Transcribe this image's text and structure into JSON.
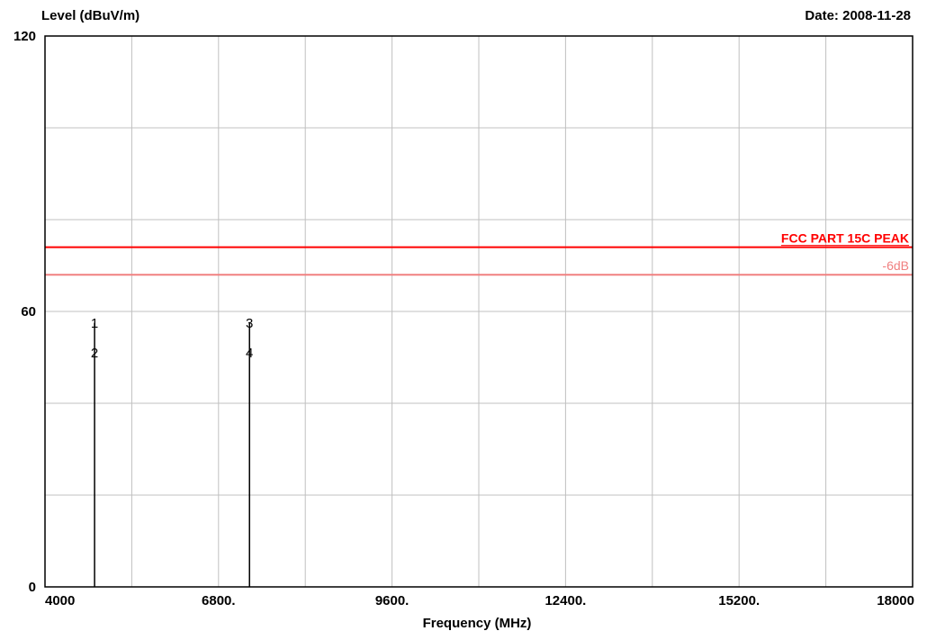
{
  "chart_data": {
    "type": "line",
    "ylabel": "Level (dBuV/m)",
    "xlabel": "Frequency (MHz)",
    "date_label": "Date: 2008-11-28",
    "xlim": [
      4000,
      18000
    ],
    "ylim": [
      0,
      120
    ],
    "grid": true,
    "x_tick_values": [
      4000,
      6800,
      9600,
      12400,
      15200,
      18000
    ],
    "x_tick_labels": [
      "4000",
      "6800.",
      "9600.",
      "12400.",
      "15200.",
      "18000"
    ],
    "x_minor_grid_step": 1400,
    "y_tick_values": [
      0,
      60,
      120
    ],
    "y_tick_labels": [
      "0",
      "60",
      "120"
    ],
    "y_minor_grid_step": 20,
    "limit_lines": [
      {
        "name": "FCC PART 15C  PEAK",
        "value": 74,
        "color": "#ff0000"
      },
      {
        "name": "-6dB",
        "value": 68,
        "color": "#f08080"
      }
    ],
    "colors": {
      "grid": "#c0c0c0",
      "frame": "#000000",
      "spikes": "#000000"
    },
    "markers": [
      {
        "label": "1",
        "x": 4800,
        "y": 57.5
      },
      {
        "label": "2",
        "x": 4800,
        "y": 51
      },
      {
        "label": "3",
        "x": 7300,
        "y": 57.5
      },
      {
        "label": "4",
        "x": 7300,
        "y": 51
      }
    ],
    "spikes": [
      {
        "x": 4800,
        "y": 57.5
      },
      {
        "x": 7300,
        "y": 57.5
      }
    ]
  }
}
